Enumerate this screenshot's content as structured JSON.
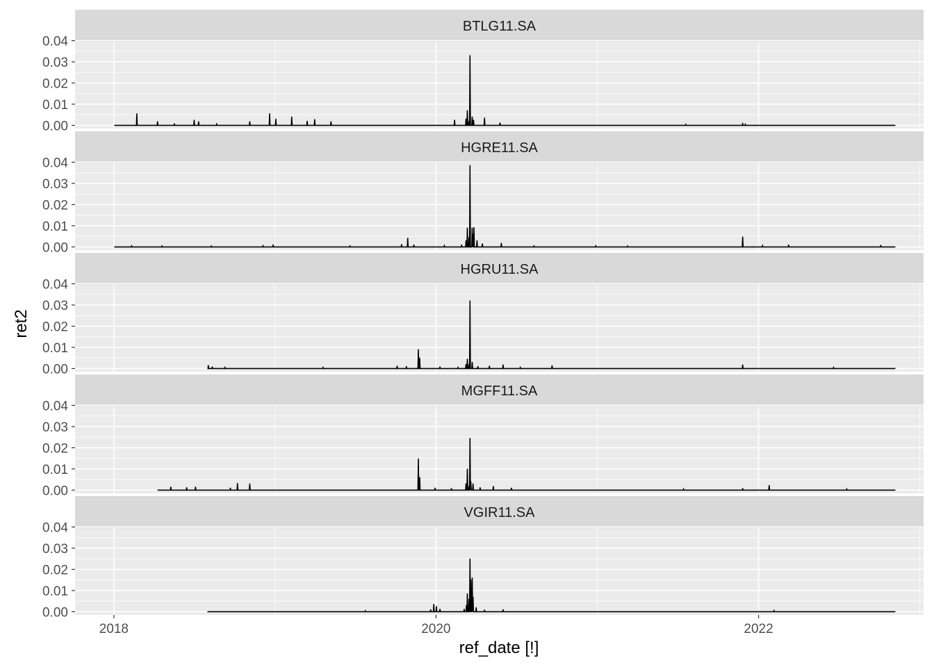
{
  "chart_data": {
    "type": "line",
    "xlabel": "ref_date [!]",
    "ylabel": "ret2",
    "x_ticks": [
      "2018",
      "2020",
      "2022"
    ],
    "y_ticks": [
      "0.00",
      "0.01",
      "0.02",
      "0.03",
      "0.04"
    ],
    "xlim": [
      "2017-10-05",
      "2023-01-10"
    ],
    "ylim": [
      -0.0015,
      0.0395
    ],
    "grid": true,
    "line_color": "#000000",
    "panel_background": "#ebebeb",
    "strip_background": "#d9d9d9",
    "panels": [
      {
        "name": "BTLG11.SA",
        "x_start": "2018-01-02",
        "x_end": "2022-11-07",
        "spikes": [
          [
            "2018-02-22",
            0.0055
          ],
          [
            "2018-04-10",
            0.0018
          ],
          [
            "2018-05-18",
            0.0008
          ],
          [
            "2018-07-02",
            0.0025
          ],
          [
            "2018-07-12",
            0.0018
          ],
          [
            "2018-08-22",
            0.0006
          ],
          [
            "2018-11-05",
            0.0018
          ],
          [
            "2018-12-20",
            0.0055
          ],
          [
            "2019-01-03",
            0.003
          ],
          [
            "2019-02-08",
            0.004
          ],
          [
            "2019-03-15",
            0.002
          ],
          [
            "2019-04-01",
            0.0028
          ],
          [
            "2019-05-08",
            0.0018
          ],
          [
            "2020-02-12",
            0.0025
          ],
          [
            "2020-03-09",
            0.003
          ],
          [
            "2020-03-12",
            0.007
          ],
          [
            "2020-03-16",
            0.002
          ],
          [
            "2020-03-18",
            0.033
          ],
          [
            "2020-03-23",
            0.004
          ],
          [
            "2020-03-26",
            0.0025
          ],
          [
            "2020-04-20",
            0.0035
          ],
          [
            "2020-05-25",
            0.0012
          ],
          [
            "2021-07-20",
            0.0004
          ],
          [
            "2021-11-26",
            0.0007
          ],
          [
            "2021-12-02",
            0.0005
          ]
        ]
      },
      {
        "name": "HGRE11.SA",
        "x_start": "2018-01-02",
        "x_end": "2022-11-07",
        "spikes": [
          [
            "2018-02-10",
            0.0005
          ],
          [
            "2018-04-20",
            0.0004
          ],
          [
            "2018-08-10",
            0.0004
          ],
          [
            "2018-12-05",
            0.0005
          ],
          [
            "2018-12-28",
            0.001
          ],
          [
            "2019-06-20",
            0.0004
          ],
          [
            "2019-10-15",
            0.0012
          ],
          [
            "2019-10-29",
            0.0042
          ],
          [
            "2019-11-12",
            0.001
          ],
          [
            "2020-01-20",
            0.0006
          ],
          [
            "2020-02-28",
            0.001
          ],
          [
            "2020-03-09",
            0.003
          ],
          [
            "2020-03-12",
            0.009
          ],
          [
            "2020-03-16",
            0.0045
          ],
          [
            "2020-03-18",
            0.0385
          ],
          [
            "2020-03-23",
            0.009
          ],
          [
            "2020-03-25",
            0.006
          ],
          [
            "2020-03-27",
            0.0092
          ],
          [
            "2020-04-03",
            0.003
          ],
          [
            "2020-04-15",
            0.0015
          ],
          [
            "2020-05-28",
            0.0018
          ],
          [
            "2020-08-10",
            0.0004
          ],
          [
            "2020-12-28",
            0.0005
          ],
          [
            "2021-03-10",
            0.0004
          ],
          [
            "2021-11-26",
            0.0048
          ],
          [
            "2022-01-10",
            0.0006
          ],
          [
            "2022-03-10",
            0.001
          ],
          [
            "2022-10-05",
            0.0008
          ]
        ]
      },
      {
        "name": "HGRU11.SA",
        "x_start": "2018-08-01",
        "x_end": "2022-11-07",
        "spikes": [
          [
            "2018-08-03",
            0.0015
          ],
          [
            "2018-08-12",
            0.0008
          ],
          [
            "2018-09-10",
            0.0005
          ],
          [
            "2019-04-20",
            0.0005
          ],
          [
            "2019-10-05",
            0.0012
          ],
          [
            "2019-10-26",
            0.001
          ],
          [
            "2019-11-22",
            0.009
          ],
          [
            "2019-11-25",
            0.005
          ],
          [
            "2020-01-10",
            0.0008
          ],
          [
            "2020-02-20",
            0.0005
          ],
          [
            "2020-03-09",
            0.002
          ],
          [
            "2020-03-12",
            0.0045
          ],
          [
            "2020-03-16",
            0.002
          ],
          [
            "2020-03-18",
            0.032
          ],
          [
            "2020-03-23",
            0.003
          ],
          [
            "2020-04-05",
            0.001
          ],
          [
            "2020-05-01",
            0.0012
          ],
          [
            "2020-06-01",
            0.0018
          ],
          [
            "2020-07-10",
            0.0005
          ],
          [
            "2020-09-20",
            0.0014
          ],
          [
            "2021-11-26",
            0.0018
          ],
          [
            "2022-06-20",
            0.0005
          ]
        ]
      },
      {
        "name": "MGFF11.SA",
        "x_start": "2018-04-10",
        "x_end": "2022-11-07",
        "spikes": [
          [
            "2018-05-10",
            0.0015
          ],
          [
            "2018-06-15",
            0.0012
          ],
          [
            "2018-07-05",
            0.0015
          ],
          [
            "2018-09-22",
            0.001
          ],
          [
            "2018-10-08",
            0.0032
          ],
          [
            "2018-11-05",
            0.003
          ],
          [
            "2019-11-22",
            0.0148
          ],
          [
            "2019-11-25",
            0.006
          ],
          [
            "2019-12-30",
            0.001
          ],
          [
            "2020-02-05",
            0.0008
          ],
          [
            "2020-03-09",
            0.003
          ],
          [
            "2020-03-12",
            0.01
          ],
          [
            "2020-03-16",
            0.0018
          ],
          [
            "2020-03-18",
            0.0245
          ],
          [
            "2020-03-20",
            0.004
          ],
          [
            "2020-03-25",
            0.003
          ],
          [
            "2020-04-10",
            0.0012
          ],
          [
            "2020-05-10",
            0.0018
          ],
          [
            "2020-06-20",
            0.001
          ],
          [
            "2021-07-15",
            0.0005
          ],
          [
            "2021-11-26",
            0.0008
          ],
          [
            "2022-01-25",
            0.0022
          ],
          [
            "2022-07-20",
            0.0005
          ]
        ]
      },
      {
        "name": "VGIR11.SA",
        "x_start": "2018-08-01",
        "x_end": "2022-11-07",
        "spikes": [
          [
            "2019-07-25",
            0.0004
          ],
          [
            "2019-12-20",
            0.001
          ],
          [
            "2019-12-27",
            0.0035
          ],
          [
            "2020-01-02",
            0.0025
          ],
          [
            "2020-01-10",
            0.0012
          ],
          [
            "2020-03-05",
            0.0012
          ],
          [
            "2020-03-10",
            0.003
          ],
          [
            "2020-03-12",
            0.0085
          ],
          [
            "2020-03-16",
            0.006
          ],
          [
            "2020-03-18",
            0.025
          ],
          [
            "2020-03-20",
            0.015
          ],
          [
            "2020-03-23",
            0.016
          ],
          [
            "2020-03-25",
            0.007
          ],
          [
            "2020-04-01",
            0.002
          ],
          [
            "2020-04-20",
            0.0008
          ],
          [
            "2020-06-01",
            0.001
          ],
          [
            "2022-02-05",
            0.0005
          ]
        ]
      }
    ]
  }
}
